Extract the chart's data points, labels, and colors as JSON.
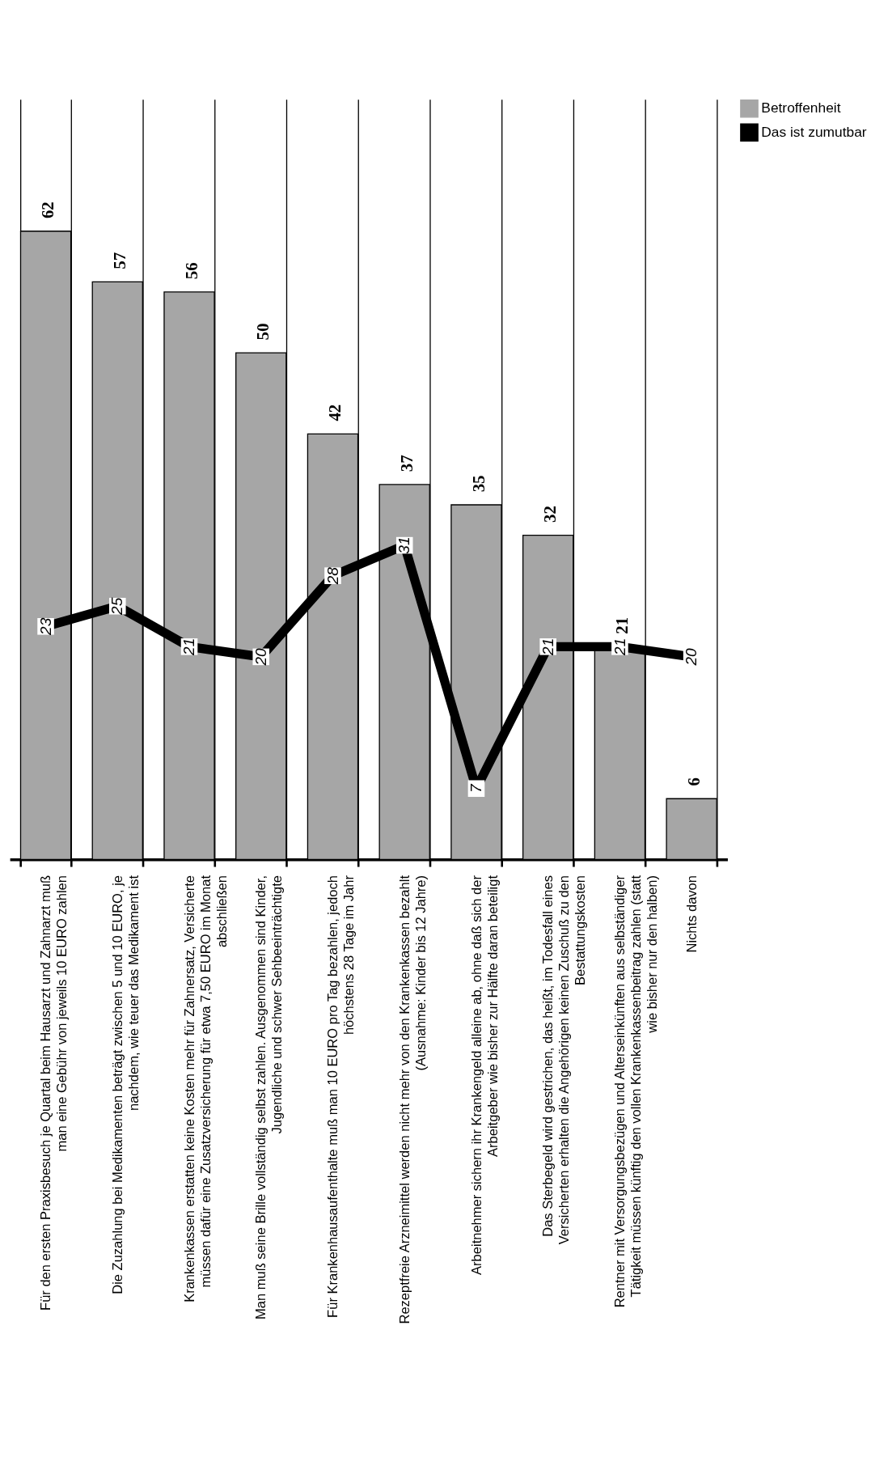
{
  "chart_data": {
    "type": "bar",
    "categories": [
      "Für den ersten Praxisbesuch je Quartal beim Hausarzt und Zahnarzt muß man eine Gebühr von jeweils 10 EURO zahlen",
      "Die Zuzahlung bei Medikamenten beträgt zwischen 5 und 10 EURO, je nachdem, wie teuer das Medikament ist",
      "Krankenkassen erstatten keine Kosten mehr für Zahnersatz, Versicherte müssen dafür eine Zusatzversicherung für etwa 7,50 EURO im Monat abschließen",
      "Man muß seine Brille vollständig selbst zahlen. Ausgenommen sind Kinder, Jugendliche und schwer Sehbeeinträchtigte",
      "Für Krankenhausaufenthalte muß man 10 EURO pro Tag bezahlen, jedoch höchstens 28 Tage im Jahr",
      "Rezeptfreie Arzneimittel werden nicht mehr von den Krankenkassen bezahlt (Ausnahme: Kinder bis 12 Jahre)",
      "Arbeitnehmer sichern ihr Krankengeld alleine ab, ohne daß sich der Arbeitgeber wie bisher zur Hälfte daran beteiligt",
      "Das Sterbegeld wird gestrichen, das heißt, im Todesfall eines Versicherten erhalten die Angehörigen keinen Zuschuß zu den Bestattungskosten",
      "Rentner mit Versorgungsbezügen und Alterseinkünften aus selbständiger Tätigkeit müssen künftig den vollen Krankenkassenbeitrag zahlen (statt wie bisher nur den halben)",
      "Nichts davon"
    ],
    "series": [
      {
        "name": "Betroffenheit",
        "type": "bar",
        "color": "#a6a6a6",
        "values": [
          62,
          57,
          56,
          50,
          42,
          37,
          35,
          32,
          21,
          6
        ]
      },
      {
        "name": "Das ist zumutbar",
        "type": "line",
        "color": "#000000",
        "marker": "square",
        "values": [
          23,
          25,
          21,
          20,
          28,
          31,
          7,
          21,
          21,
          20
        ]
      }
    ],
    "ylim": [
      0,
      75
    ],
    "data_labels": true,
    "grid": "x",
    "legend": "right",
    "tick_labels": "x"
  }
}
